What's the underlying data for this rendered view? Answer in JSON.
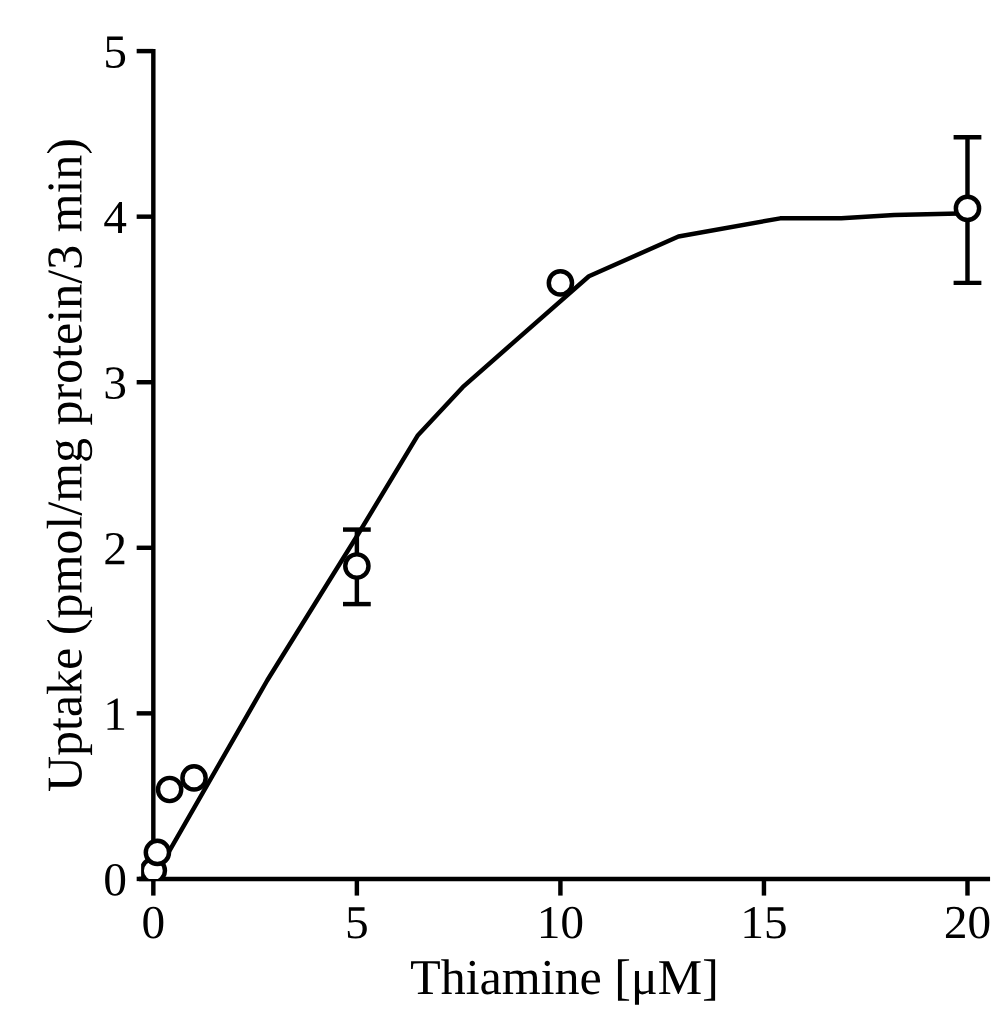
{
  "chart_data": {
    "type": "scatter",
    "xlabel": "Thiamine [μM]",
    "ylabel": "Uptake (pmol/mg protein/3 min)",
    "xlim": [
      -0.3,
      20.5
    ],
    "ylim": [
      0,
      5
    ],
    "xticks": [
      0,
      5,
      10,
      15,
      20
    ],
    "yticks": [
      0,
      1,
      2,
      3,
      4,
      5
    ],
    "grid": false,
    "series": [
      {
        "color": "#000000",
        "marker": "circle",
        "x": [
          0,
          0.1,
          0.4,
          1,
          5,
          10,
          20
        ],
        "values": [
          0.05,
          0.16,
          0.54,
          0.61,
          1.89,
          3.6,
          4.05
        ],
        "errors": [
          null,
          null,
          null,
          null,
          [
            1.66,
            2.11
          ],
          null,
          [
            3.6,
            4.48
          ]
        ]
      },
      {
        "type": "line",
        "color": "#000000",
        "marker": "none",
        "line_style": "solid",
        "x": [
          0,
          2.8,
          5,
          6.5,
          7.6,
          8.8,
          10.7,
          12.9,
          15.4,
          16.9,
          18.2,
          20
        ],
        "values": [
          0,
          1.2,
          2.07,
          2.68,
          2.97,
          3.23,
          3.64,
          3.88,
          3.99,
          3.99,
          4.01,
          4.02
        ]
      }
    ]
  }
}
